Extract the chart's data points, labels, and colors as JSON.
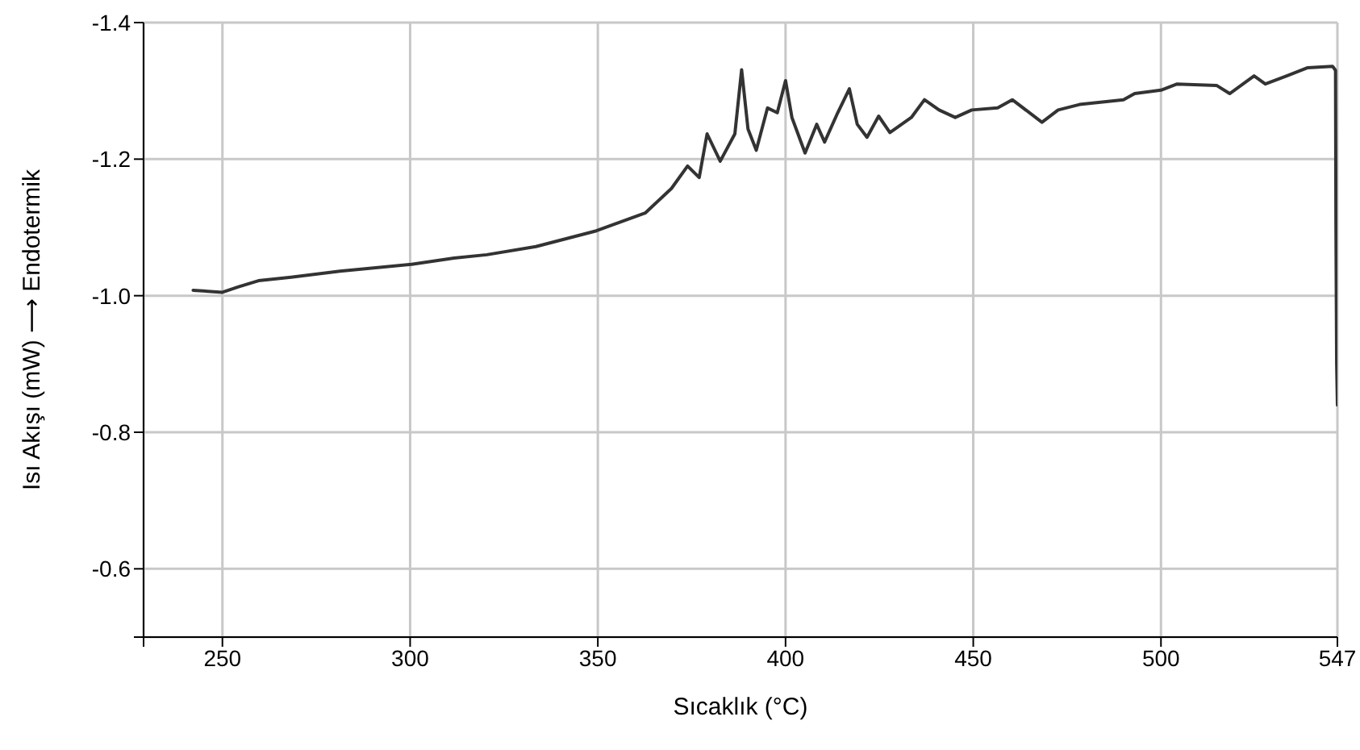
{
  "chart_data": {
    "type": "line",
    "xlabel": "Sıcaklık (°C)",
    "ylabel": "Isı Akışı (mW) ⟶ Endotermik",
    "xlim": [
      229,
      547
    ],
    "xticks": [
      {
        "value": 229,
        "label": null
      },
      250,
      300,
      350,
      400,
      450,
      500,
      547
    ],
    "ylim": [
      -0.5,
      -1.4
    ],
    "yticks": [
      {
        "value": -0.5,
        "label": null
      },
      -0.6,
      -0.8,
      {
        "value": -1,
        "label": "-1.0"
      },
      -1.2,
      -1.4
    ],
    "grid": true,
    "marker": "none",
    "line_style": "solid",
    "series": [
      {
        "color": "#333333",
        "x": [
          242.2,
          250,
          254.3,
          259.6,
          268.3,
          281.3,
          300.4,
          311.7,
          320.4,
          333.5,
          349.6,
          362.6,
          369.6,
          373.9,
          377,
          379.1,
          382.6,
          386.5,
          388.3,
          390,
          392.2,
          395.2,
          397.8,
          400,
          401.7,
          405.2,
          408.3,
          410.4,
          413.9,
          417,
          419.1,
          421.7,
          424.8,
          427.8,
          433.5,
          437,
          440.9,
          445.2,
          449.6,
          456.5,
          460.4,
          468.3,
          472.6,
          478.3,
          490,
          493,
          500,
          504.3,
          514.8,
          518.3,
          524.8,
          527.8,
          533.5,
          539.1,
          545.7,
          546.5,
          546.6,
          546.8,
          547
        ],
        "values": [
          -1.008,
          -1.005,
          -1.013,
          -1.022,
          -1.027,
          -1.036,
          -1.046,
          -1.055,
          -1.06,
          -1.072,
          -1.095,
          -1.121,
          -1.157,
          -1.19,
          -1.173,
          -1.237,
          -1.197,
          -1.237,
          -1.331,
          -1.244,
          -1.213,
          -1.275,
          -1.268,
          -1.315,
          -1.261,
          -1.209,
          -1.251,
          -1.225,
          -1.268,
          -1.303,
          -1.251,
          -1.232,
          -1.263,
          -1.239,
          -1.261,
          -1.287,
          -1.272,
          -1.261,
          -1.272,
          -1.275,
          -1.287,
          -1.254,
          -1.272,
          -1.28,
          -1.287,
          -1.296,
          -1.301,
          -1.31,
          -1.308,
          -1.296,
          -1.322,
          -1.31,
          -1.322,
          -1.334,
          -1.336,
          -1.33,
          -1.11,
          -0.9,
          -0.84
        ]
      }
    ]
  }
}
